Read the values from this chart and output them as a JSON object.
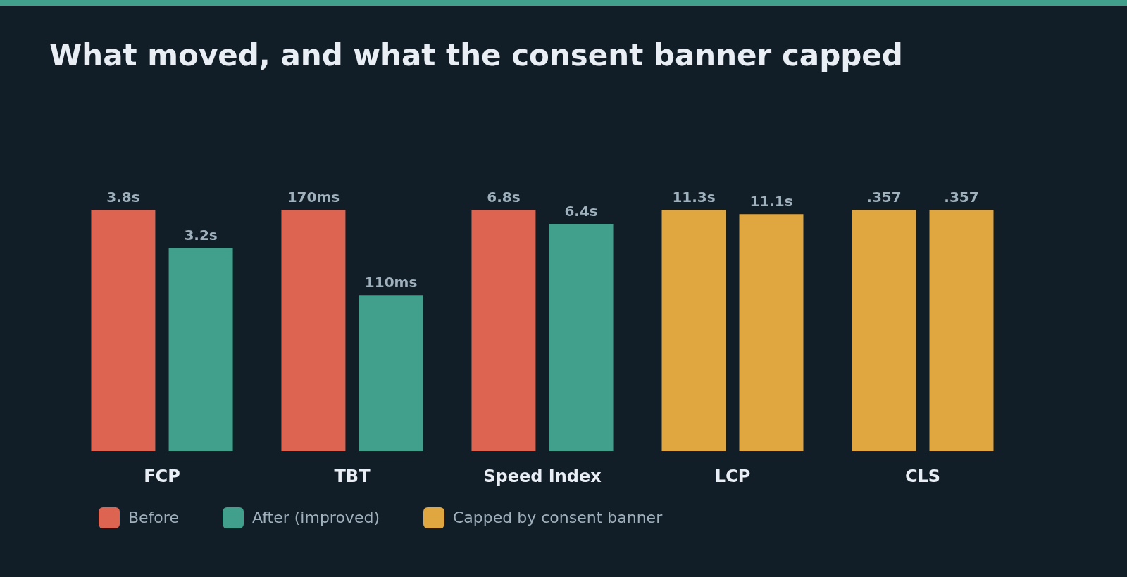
{
  "chart_data": [
    {
      "type": "bar",
      "title": "What moved, and what the consent banner capped",
      "xlabel": "FCP",
      "categories": [
        null
      ],
      "tick_labels": false,
      "legend": "bottom right",
      "series": [
        {
          "name": "Before",
          "color": "#dc6450",
          "values": [
            3.8
          ],
          "value_labels": [
            "3.8s"
          ]
        },
        {
          "name": "After (improved)",
          "color": "#40a08c",
          "values": [
            3.2
          ],
          "value_labels": [
            "3.2s"
          ]
        }
      ]
    },
    {
      "type": "bar",
      "xlabel": "TBT",
      "categories": [
        null
      ],
      "tick_labels": false,
      "series": [
        {
          "name": "Before",
          "color": "#dc6450",
          "values": [
            170
          ],
          "value_labels": [
            "170ms"
          ]
        },
        {
          "name": "After (improved)",
          "color": "#40a08c",
          "values": [
            110
          ],
          "value_labels": [
            "110ms"
          ]
        }
      ]
    },
    {
      "type": "bar",
      "xlabel": "Speed Index",
      "categories": [
        null
      ],
      "tick_labels": false,
      "series": [
        {
          "name": "Before",
          "color": "#dc6450",
          "values": [
            6.8
          ],
          "value_labels": [
            "6.8s"
          ]
        },
        {
          "name": "After (improved)",
          "color": "#40a08c",
          "values": [
            6.4
          ],
          "value_labels": [
            "6.4s"
          ]
        }
      ]
    },
    {
      "type": "bar",
      "xlabel": "LCP",
      "categories": [
        null,
        null
      ],
      "tick_labels": false,
      "series": [
        {
          "name": "Capped by consent banner",
          "color": "#e0a640",
          "values": [
            11.3,
            11.1
          ],
          "value_labels": [
            "11.3s",
            "11.1s"
          ]
        }
      ]
    },
    {
      "type": "bar",
      "xlabel": "CLS",
      "categories": [
        null,
        null
      ],
      "tick_labels": false,
      "series": [
        {
          "name": "Capped by consent banner",
          "color": "#e0a640",
          "values": [
            0.357,
            0.357
          ],
          "value_labels": [
            ".357",
            ".357"
          ]
        }
      ]
    }
  ]
}
